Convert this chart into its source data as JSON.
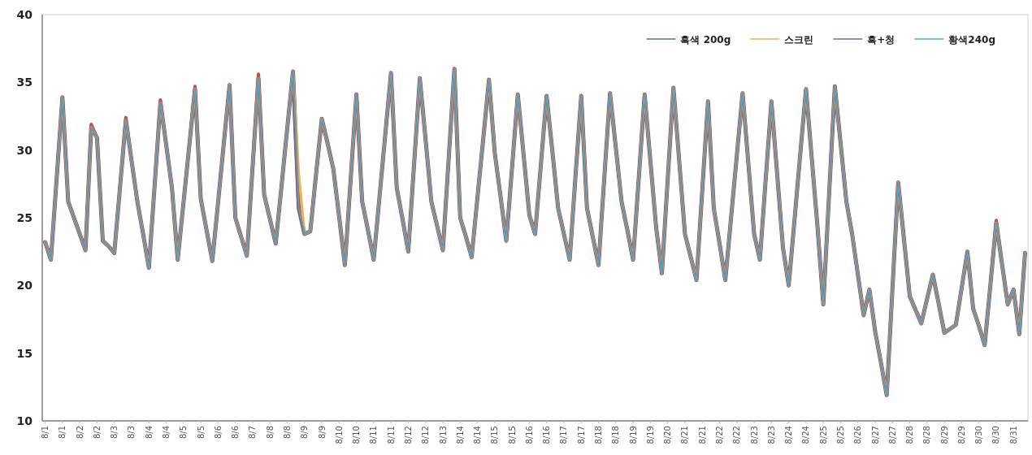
{
  "chart_data": {
    "type": "line",
    "legend": "top right",
    "marker": "none",
    "line_style": "solid",
    "categories": [
      "8/1",
      null,
      null,
      "8/1",
      null,
      null,
      "8/2",
      null,
      null,
      "8/2",
      null,
      null,
      "8/3",
      null,
      null,
      "8/3",
      null,
      null,
      "8/4",
      null,
      null,
      "8/4",
      null,
      null,
      "8/5",
      null,
      null,
      "8/5",
      null,
      null,
      "8/6",
      null,
      null,
      "8/6",
      null,
      null,
      "8/7",
      null,
      null,
      "8/8",
      null,
      null,
      "8/8",
      null,
      null,
      "8/9",
      null,
      null,
      "8/9",
      null,
      null,
      "8/10",
      null,
      null,
      "8/10",
      null,
      null,
      "8/11",
      null,
      null,
      "8/11",
      null,
      null,
      "8/12",
      null,
      null,
      "8/12",
      null,
      null,
      "8/13",
      null,
      null,
      "8/14",
      null,
      null,
      "8/14",
      null,
      null,
      "8/15",
      null,
      null,
      "8/15",
      null,
      null,
      "8/16",
      null,
      null,
      "8/16",
      null,
      null,
      "8/17",
      null,
      null,
      "8/17",
      null,
      null,
      "8/18",
      null,
      null,
      "8/18",
      null,
      null,
      "8/19",
      null,
      null,
      "8/19",
      null,
      null,
      "8/20",
      null,
      null,
      "8/21",
      null,
      null,
      "8/21",
      null,
      null,
      "8/22",
      null,
      null,
      "8/22",
      null,
      null,
      "8/23",
      null,
      null,
      "8/23",
      null,
      null,
      "8/24",
      null,
      null,
      "8/24",
      null,
      null,
      "8/25",
      null,
      null,
      "8/25",
      null,
      null,
      "8/26",
      null,
      null,
      "8/27",
      null,
      null,
      "8/27",
      null,
      null,
      "8/28",
      null,
      null,
      "8/28",
      null,
      null,
      "8/29",
      null,
      null,
      "8/29",
      null,
      null,
      "8/30",
      null,
      null,
      "8/30",
      null,
      null,
      "8/31",
      null,
      null
    ],
    "ylim": [
      10,
      40
    ],
    "yticks": [
      10,
      15,
      20,
      25,
      30,
      35,
      40
    ],
    "series": [
      {
        "name": "흑색 200g",
        "color": "#5a6f8c",
        "values": [
          23.2,
          21.9,
          27.9,
          33.9,
          26.2,
          25.0,
          23.8,
          22.6,
          31.7,
          30.9,
          23.3,
          22.9,
          22.4,
          27.3,
          32.2,
          29.2,
          26.2,
          23.8,
          21.3,
          27.4,
          33.5,
          30.4,
          27.2,
          21.9,
          26.1,
          30.3,
          34.5,
          26.4,
          24.1,
          21.8,
          26.1,
          30.5,
          34.8,
          25.0,
          23.6,
          22.2,
          28.8,
          35.3,
          26.7,
          24.9,
          23.1,
          27.3,
          31.6,
          35.8,
          25.7,
          23.8,
          24.0,
          28.2,
          32.3,
          30.5,
          28.6,
          25.1,
          21.5,
          27.8,
          34.1,
          26.2,
          24.1,
          21.9,
          26.5,
          31.1,
          35.7,
          27.2,
          24.9,
          22.5,
          28.9,
          35.3,
          30.8,
          26.2,
          24.4,
          22.6,
          29.3,
          36.0,
          25.0,
          23.6,
          22.1,
          26.5,
          30.8,
          35.2,
          29.8,
          26.6,
          23.3,
          28.7,
          34.1,
          29.7,
          25.2,
          23.8,
          28.9,
          34.0,
          29.9,
          25.7,
          23.8,
          21.9,
          28.0,
          34.0,
          25.7,
          23.6,
          21.5,
          27.9,
          34.2,
          30.2,
          26.2,
          24.1,
          21.9,
          28.0,
          34.1,
          29.2,
          24.3,
          20.9,
          27.8,
          34.6,
          29.2,
          23.8,
          22.1,
          20.4,
          27.0,
          33.6,
          25.7,
          23.1,
          20.4,
          25.0,
          29.6,
          34.2,
          29.0,
          23.8,
          21.9,
          27.8,
          33.6,
          28.2,
          22.8,
          20.0,
          24.8,
          29.7,
          34.5,
          29.4,
          24.3,
          18.6,
          26.7,
          34.7,
          30.5,
          26.2,
          23.8,
          20.8,
          17.8,
          19.7,
          16.6,
          14.3,
          11.9,
          19.8,
          27.6,
          23.4,
          19.2,
          18.2,
          17.2,
          19.0,
          20.8,
          18.7,
          16.5,
          16.8,
          17.1,
          19.8,
          22.5,
          18.3,
          17.0,
          15.6,
          20.1,
          24.6,
          21.6,
          18.6,
          19.7,
          16.4,
          22.4
        ]
      },
      {
        "color": "#c0504d",
        "values": [
          23.2,
          21.9,
          27.9,
          33.9,
          26.2,
          25.0,
          23.8,
          22.6,
          31.9,
          30.9,
          23.3,
          22.9,
          22.4,
          27.3,
          32.4,
          29.2,
          26.2,
          23.8,
          21.3,
          27.4,
          33.7,
          30.4,
          27.2,
          21.9,
          26.1,
          30.3,
          34.7,
          26.4,
          24.1,
          21.8,
          26.1,
          30.5,
          34.8,
          25.0,
          23.6,
          22.2,
          28.8,
          35.6,
          26.7,
          24.9,
          23.1,
          27.3,
          31.6,
          35.8,
          25.7,
          23.8,
          24.0,
          28.2,
          32.3,
          30.5,
          28.6,
          25.1,
          21.5,
          27.8,
          34.1,
          26.2,
          24.1,
          21.9,
          26.5,
          31.1,
          35.7,
          27.2,
          24.9,
          22.5,
          28.9,
          35.3,
          30.8,
          26.2,
          24.4,
          22.6,
          29.3,
          36.0,
          25.0,
          23.6,
          22.1,
          26.5,
          30.8,
          35.2,
          29.8,
          26.6,
          23.3,
          28.7,
          34.1,
          29.7,
          25.2,
          23.8,
          28.9,
          34.0,
          29.9,
          25.7,
          23.8,
          21.9,
          28.0,
          34.0,
          25.7,
          23.6,
          21.5,
          27.9,
          34.2,
          30.2,
          26.2,
          24.1,
          21.9,
          28.0,
          34.1,
          29.2,
          24.3,
          20.9,
          27.8,
          34.6,
          29.2,
          23.8,
          22.1,
          20.4,
          27.0,
          33.6,
          25.7,
          23.1,
          20.4,
          25.0,
          29.6,
          34.2,
          29.0,
          23.8,
          21.9,
          27.8,
          33.6,
          28.2,
          22.8,
          20.0,
          24.8,
          29.7,
          34.5,
          29.4,
          24.3,
          18.6,
          26.7,
          34.7,
          30.5,
          26.2,
          23.8,
          20.8,
          17.8,
          19.7,
          16.6,
          14.3,
          11.9,
          19.8,
          27.6,
          23.4,
          19.2,
          18.2,
          17.2,
          19.0,
          20.8,
          18.7,
          16.5,
          16.8,
          17.1,
          19.8,
          22.5,
          18.3,
          17.0,
          15.6,
          20.1,
          24.8,
          21.6,
          18.6,
          19.7,
          16.4,
          22.4
        ]
      },
      {
        "name": "스크린",
        "color": "#f0b050",
        "values": [
          23.2,
          21.9,
          27.9,
          33.9,
          26.2,
          25.0,
          23.8,
          22.6,
          31.7,
          30.9,
          23.3,
          22.9,
          22.4,
          27.3,
          32.2,
          29.2,
          26.2,
          23.8,
          21.3,
          27.4,
          33.5,
          30.4,
          27.2,
          21.9,
          26.1,
          30.3,
          34.5,
          26.4,
          24.1,
          21.8,
          26.1,
          30.5,
          34.8,
          25.0,
          23.6,
          22.2,
          28.8,
          35.3,
          26.7,
          24.9,
          23.1,
          27.3,
          31.6,
          35.8,
          28.2,
          23.8,
          24.0,
          28.2,
          32.3,
          30.5,
          28.6,
          25.1,
          21.5,
          27.8,
          34.1,
          26.2,
          24.1,
          21.9,
          26.5,
          31.1,
          35.7,
          27.2,
          24.9,
          22.5,
          28.9,
          35.3,
          30.8,
          26.2,
          24.4,
          22.6,
          29.3,
          36.0,
          25.0,
          23.6,
          22.1,
          26.5,
          30.8,
          35.2,
          29.8,
          26.6,
          23.3,
          28.7,
          34.1,
          29.7,
          25.2,
          23.8,
          28.9,
          34.0,
          29.9,
          25.7,
          23.8,
          21.9,
          28.0,
          34.0,
          25.7,
          23.6,
          21.5,
          27.9,
          34.2,
          30.2,
          26.2,
          24.1,
          21.9,
          28.0,
          34.1,
          29.2,
          24.3,
          20.9,
          27.8,
          34.6,
          29.2,
          23.8,
          22.1,
          20.4,
          27.0,
          33.6,
          25.7,
          23.1,
          20.4,
          25.0,
          29.6,
          34.2,
          29.0,
          23.8,
          21.9,
          27.8,
          33.6,
          28.2,
          22.8,
          20.0,
          24.8,
          29.7,
          34.5,
          29.4,
          24.3,
          18.6,
          26.7,
          34.7,
          30.5,
          26.2,
          23.8,
          20.8,
          17.8,
          19.7,
          16.6,
          14.3,
          11.9,
          19.8,
          27.6,
          23.4,
          19.2,
          18.2,
          17.2,
          19.0,
          20.8,
          18.7,
          16.5,
          16.8,
          17.1,
          19.8,
          22.5,
          18.3,
          17.0,
          15.6,
          20.1,
          24.6,
          21.6,
          18.6,
          19.7,
          16.4,
          22.4
        ]
      },
      {
        "name": "흑+청",
        "color": "#7a6a98",
        "values": [
          23.2,
          21.9,
          27.9,
          33.9,
          26.2,
          25.0,
          23.8,
          22.6,
          31.7,
          30.9,
          23.3,
          22.9,
          22.4,
          27.3,
          32.2,
          29.2,
          26.2,
          23.8,
          21.3,
          27.4,
          33.5,
          30.4,
          27.2,
          21.9,
          26.1,
          30.3,
          34.5,
          26.4,
          24.1,
          21.8,
          26.1,
          30.5,
          34.8,
          25.0,
          23.6,
          22.2,
          28.8,
          35.3,
          26.7,
          24.9,
          23.1,
          27.3,
          31.6,
          35.8,
          25.7,
          23.8,
          24.0,
          28.2,
          32.3,
          30.5,
          28.6,
          25.1,
          21.5,
          27.8,
          34.1,
          26.2,
          24.1,
          21.9,
          26.5,
          31.1,
          35.7,
          27.2,
          24.9,
          22.5,
          28.9,
          35.3,
          30.8,
          26.2,
          24.4,
          22.6,
          29.3,
          36.0,
          25.0,
          23.6,
          22.1,
          26.5,
          30.8,
          35.2,
          29.8,
          26.6,
          23.3,
          28.7,
          34.1,
          29.7,
          25.2,
          23.8,
          28.9,
          34.0,
          29.9,
          25.7,
          23.8,
          21.9,
          28.0,
          34.0,
          25.7,
          23.6,
          21.5,
          27.9,
          34.2,
          30.2,
          26.2,
          24.1,
          21.9,
          28.0,
          34.1,
          29.2,
          24.3,
          20.9,
          27.8,
          34.6,
          29.2,
          23.8,
          22.1,
          20.4,
          27.0,
          33.6,
          25.7,
          23.1,
          20.4,
          25.0,
          29.6,
          34.2,
          29.0,
          23.8,
          21.9,
          27.8,
          33.6,
          28.2,
          22.8,
          20.0,
          24.8,
          29.7,
          34.5,
          29.4,
          24.3,
          18.6,
          26.7,
          34.7,
          30.5,
          26.2,
          23.8,
          20.8,
          17.8,
          19.7,
          16.6,
          14.3,
          11.9,
          19.8,
          27.6,
          23.4,
          19.2,
          18.2,
          17.2,
          19.0,
          20.8,
          18.7,
          16.5,
          16.8,
          17.1,
          19.8,
          22.5,
          18.3,
          17.0,
          15.6,
          20.1,
          24.6,
          21.6,
          18.6,
          19.7,
          16.4,
          22.4
        ]
      },
      {
        "name": "황색240g",
        "color": "#4bacc6",
        "values": [
          23.2,
          21.9,
          27.9,
          33.9,
          26.2,
          25.0,
          23.8,
          22.6,
          31.7,
          30.9,
          23.3,
          22.9,
          22.4,
          27.3,
          32.2,
          29.2,
          26.2,
          23.8,
          21.3,
          27.4,
          33.5,
          30.4,
          27.2,
          21.9,
          26.1,
          30.3,
          34.5,
          26.4,
          24.1,
          21.8,
          26.1,
          30.5,
          34.8,
          25.0,
          23.6,
          22.2,
          28.8,
          35.3,
          26.7,
          24.9,
          23.1,
          27.3,
          31.6,
          35.8,
          25.7,
          23.8,
          24.0,
          28.2,
          32.3,
          30.5,
          28.6,
          25.1,
          21.5,
          27.8,
          34.1,
          26.2,
          24.1,
          21.9,
          26.5,
          31.1,
          35.7,
          27.2,
          24.9,
          22.5,
          28.9,
          35.3,
          30.8,
          26.2,
          24.4,
          22.6,
          29.3,
          36.0,
          25.0,
          23.6,
          22.1,
          26.5,
          30.8,
          35.2,
          29.8,
          26.6,
          23.3,
          28.7,
          34.1,
          29.7,
          25.2,
          23.8,
          28.9,
          34.0,
          29.9,
          25.7,
          23.8,
          21.9,
          28.0,
          34.0,
          25.7,
          23.6,
          21.5,
          27.9,
          34.2,
          30.2,
          26.2,
          24.1,
          21.9,
          28.0,
          34.1,
          29.2,
          24.3,
          20.9,
          27.8,
          34.6,
          29.2,
          23.8,
          22.1,
          20.4,
          27.0,
          33.6,
          25.7,
          23.1,
          20.4,
          25.0,
          29.6,
          34.2,
          29.0,
          23.8,
          21.9,
          27.8,
          33.6,
          28.2,
          22.8,
          20.0,
          24.8,
          29.7,
          34.5,
          29.4,
          24.3,
          18.6,
          26.7,
          34.7,
          30.5,
          26.2,
          23.8,
          20.8,
          17.8,
          19.7,
          16.6,
          14.3,
          11.9,
          19.8,
          27.6,
          23.4,
          19.2,
          18.2,
          17.2,
          19.0,
          20.8,
          18.7,
          16.5,
          16.8,
          17.1,
          19.8,
          22.5,
          18.3,
          17.0,
          15.6,
          20.1,
          24.6,
          21.6,
          18.6,
          19.7,
          16.4,
          22.4
        ]
      }
    ]
  }
}
